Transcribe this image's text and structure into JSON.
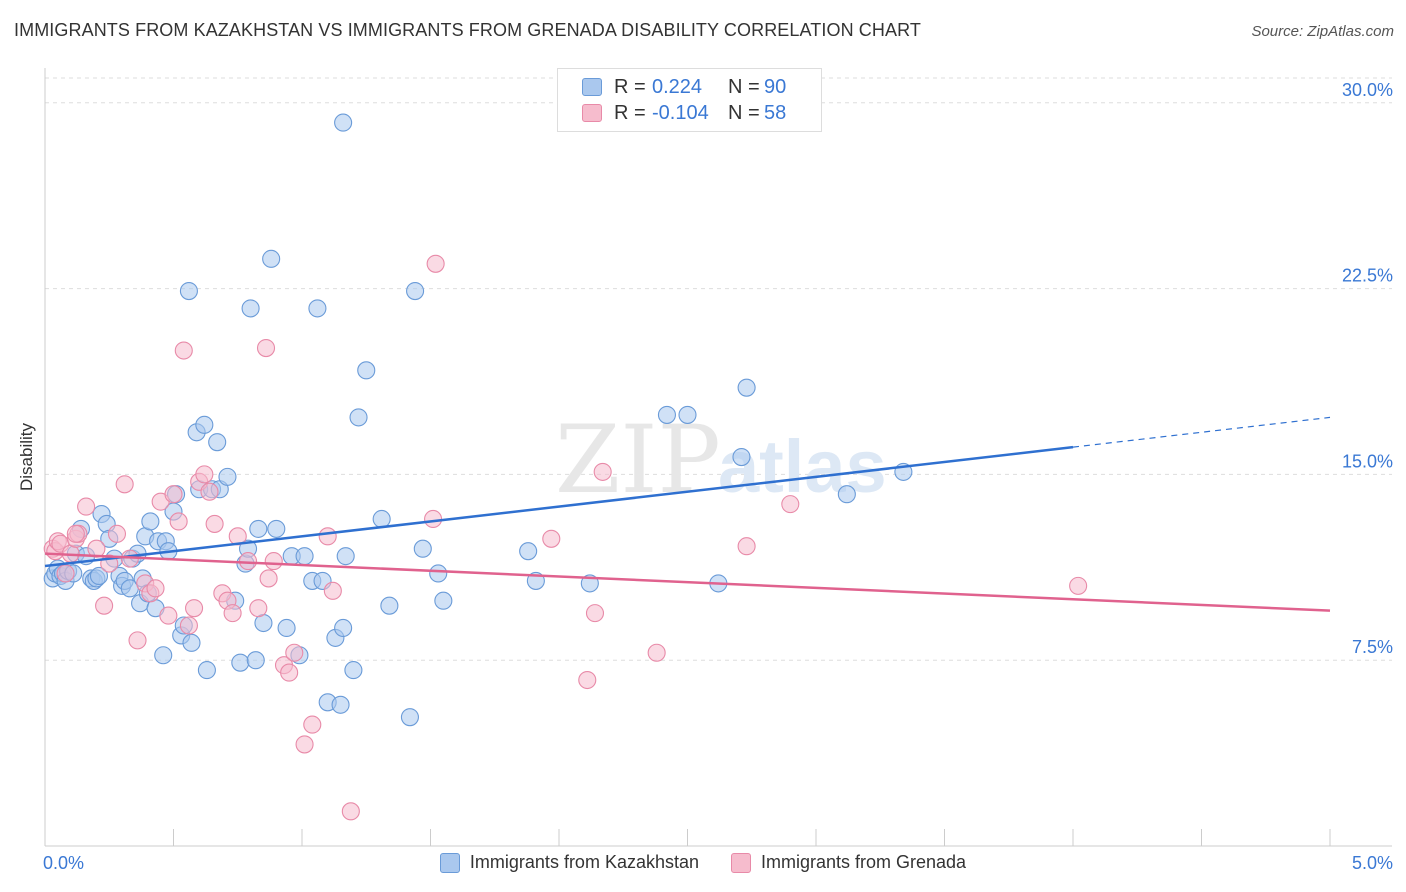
{
  "title": "IMMIGRANTS FROM KAZAKHSTAN VS IMMIGRANTS FROM GRENADA DISABILITY CORRELATION CHART",
  "source": "Source: ZipAtlas.com",
  "watermark": {
    "zip": "ZIP",
    "atlas": "atlas"
  },
  "legend": {
    "rows": [
      {
        "r_label": "R =",
        "r_value": "0.224",
        "n_label": "N =",
        "n_value": "90"
      },
      {
        "r_label": "R =",
        "r_value": "-0.104",
        "n_label": "N =",
        "n_value": "58"
      }
    ]
  },
  "bottom_legend": {
    "kazakhstan": "Immigrants from Kazakhstan",
    "grenada": "Immigrants from Grenada"
  },
  "colors": {
    "blue_fill": "#aac8ee",
    "blue_stroke": "#6a9bd8",
    "blue_line": "#2f70d0",
    "pink_fill": "#f6bccd",
    "pink_stroke": "#e88aa8",
    "pink_line": "#e0628e",
    "axis_text": "#3a78d4",
    "grid": "#dddddd"
  },
  "chart_data": {
    "type": "scatter",
    "title": "IMMIGRANTS FROM KAZAKHSTAN VS IMMIGRANTS FROM GRENADA DISABILITY CORRELATION CHART",
    "xlabel": "",
    "ylabel": "Disability",
    "xlim": [
      0,
      5
    ],
    "ylim": [
      0,
      31
    ],
    "x_tick_labels": [
      "0.0%",
      "5.0%"
    ],
    "y_ticks": [
      7.5,
      15.0,
      22.5,
      30.0
    ],
    "y_tick_labels": [
      "7.5%",
      "15.0%",
      "22.5%",
      "30.0%"
    ],
    "grid": "horizontal dashed",
    "legend_position": "top-center",
    "series": [
      {
        "name": "Immigrants from Kazakhstan",
        "color": "#aac8ee",
        "trend": {
          "x0": 0.0,
          "y0": 11.3,
          "x1": 4.0,
          "y1": 16.1,
          "dash_to_x": 5.0,
          "dash_to_y": 17.3
        },
        "points": [
          [
            0.03,
            10.8
          ],
          [
            0.04,
            11.0
          ],
          [
            0.05,
            11.2
          ],
          [
            0.06,
            10.9
          ],
          [
            0.07,
            11.0
          ],
          [
            0.08,
            10.7
          ],
          [
            0.09,
            11.1
          ],
          [
            0.11,
            11.0
          ],
          [
            0.12,
            11.8
          ],
          [
            0.14,
            12.8
          ],
          [
            0.16,
            11.7
          ],
          [
            0.18,
            10.8
          ],
          [
            0.19,
            10.7
          ],
          [
            0.2,
            10.8
          ],
          [
            0.21,
            10.9
          ],
          [
            0.22,
            13.4
          ],
          [
            0.24,
            13.0
          ],
          [
            0.25,
            12.4
          ],
          [
            0.27,
            11.6
          ],
          [
            0.29,
            10.9
          ],
          [
            0.3,
            10.5
          ],
          [
            0.31,
            10.7
          ],
          [
            0.33,
            10.4
          ],
          [
            0.34,
            11.6
          ],
          [
            0.36,
            11.8
          ],
          [
            0.37,
            9.8
          ],
          [
            0.38,
            10.8
          ],
          [
            0.39,
            12.5
          ],
          [
            0.4,
            10.2
          ],
          [
            0.41,
            13.1
          ],
          [
            0.43,
            9.6
          ],
          [
            0.44,
            12.3
          ],
          [
            0.46,
            7.7
          ],
          [
            0.47,
            12.3
          ],
          [
            0.48,
            11.9
          ],
          [
            0.5,
            13.5
          ],
          [
            0.51,
            14.2
          ],
          [
            0.53,
            8.5
          ],
          [
            0.54,
            8.9
          ],
          [
            0.56,
            22.4
          ],
          [
            0.57,
            8.2
          ],
          [
            0.59,
            16.7
          ],
          [
            0.6,
            14.4
          ],
          [
            0.62,
            17.0
          ],
          [
            0.63,
            7.1
          ],
          [
            0.65,
            14.4
          ],
          [
            0.67,
            16.3
          ],
          [
            0.68,
            14.4
          ],
          [
            0.71,
            14.9
          ],
          [
            0.74,
            9.9
          ],
          [
            0.76,
            7.4
          ],
          [
            0.78,
            11.4
          ],
          [
            0.79,
            12.0
          ],
          [
            0.8,
            21.7
          ],
          [
            0.82,
            7.5
          ],
          [
            0.83,
            12.8
          ],
          [
            0.85,
            9.0
          ],
          [
            0.88,
            23.7
          ],
          [
            0.9,
            12.8
          ],
          [
            0.94,
            8.8
          ],
          [
            0.96,
            11.7
          ],
          [
            0.99,
            7.7
          ],
          [
            1.01,
            11.7
          ],
          [
            1.04,
            10.7
          ],
          [
            1.06,
            21.7
          ],
          [
            1.08,
            10.7
          ],
          [
            1.1,
            5.8
          ],
          [
            1.13,
            8.4
          ],
          [
            1.15,
            5.7
          ],
          [
            1.16,
            8.8
          ],
          [
            1.17,
            11.7
          ],
          [
            1.2,
            7.1
          ],
          [
            1.22,
            17.3
          ],
          [
            1.25,
            19.2
          ],
          [
            1.31,
            13.2
          ],
          [
            1.34,
            9.7
          ],
          [
            1.42,
            5.2
          ],
          [
            1.44,
            22.4
          ],
          [
            1.47,
            12.0
          ],
          [
            1.53,
            11.0
          ],
          [
            1.55,
            9.9
          ],
          [
            1.88,
            11.9
          ],
          [
            1.91,
            10.7
          ],
          [
            2.12,
            10.6
          ],
          [
            2.42,
            17.4
          ],
          [
            2.5,
            17.4
          ],
          [
            2.62,
            10.6
          ],
          [
            2.71,
            15.7
          ],
          [
            2.73,
            18.5
          ],
          [
            3.12,
            14.2
          ],
          [
            3.34,
            15.1
          ],
          [
            1.16,
            29.2
          ]
        ]
      },
      {
        "name": "Immigrants from Grenada",
        "color": "#f6bccd",
        "trend": {
          "x0": 0.0,
          "y0": 11.8,
          "x1": 5.0,
          "y1": 9.5
        },
        "points": [
          [
            0.03,
            12.0
          ],
          [
            0.04,
            11.9
          ],
          [
            0.05,
            12.3
          ],
          [
            0.06,
            12.2
          ],
          [
            0.08,
            11.0
          ],
          [
            0.1,
            11.8
          ],
          [
            0.12,
            12.4
          ],
          [
            0.13,
            12.6
          ],
          [
            0.16,
            13.7
          ],
          [
            0.2,
            12.0
          ],
          [
            0.23,
            9.7
          ],
          [
            0.25,
            11.4
          ],
          [
            0.28,
            12.6
          ],
          [
            0.31,
            14.6
          ],
          [
            0.33,
            11.6
          ],
          [
            0.36,
            8.3
          ],
          [
            0.39,
            10.6
          ],
          [
            0.41,
            10.2
          ],
          [
            0.43,
            10.4
          ],
          [
            0.45,
            13.9
          ],
          [
            0.48,
            9.3
          ],
          [
            0.5,
            14.2
          ],
          [
            0.52,
            13.1
          ],
          [
            0.54,
            20.0
          ],
          [
            0.56,
            8.9
          ],
          [
            0.58,
            9.6
          ],
          [
            0.6,
            14.7
          ],
          [
            0.62,
            15.0
          ],
          [
            0.64,
            14.3
          ],
          [
            0.66,
            13.0
          ],
          [
            0.69,
            10.2
          ],
          [
            0.71,
            9.9
          ],
          [
            0.73,
            9.4
          ],
          [
            0.75,
            12.5
          ],
          [
            0.79,
            11.5
          ],
          [
            0.83,
            9.6
          ],
          [
            0.86,
            20.1
          ],
          [
            0.87,
            10.8
          ],
          [
            0.89,
            11.5
          ],
          [
            0.93,
            7.3
          ],
          [
            0.95,
            7.0
          ],
          [
            0.97,
            7.8
          ],
          [
            1.01,
            4.1
          ],
          [
            1.04,
            4.9
          ],
          [
            1.1,
            12.5
          ],
          [
            1.12,
            10.3
          ],
          [
            1.19,
            1.4
          ],
          [
            1.52,
            23.5
          ],
          [
            1.51,
            13.2
          ],
          [
            1.97,
            12.4
          ],
          [
            2.11,
            6.7
          ],
          [
            2.14,
            9.4
          ],
          [
            2.17,
            15.1
          ],
          [
            2.38,
            7.8
          ],
          [
            2.73,
            12.1
          ],
          [
            2.9,
            13.8
          ],
          [
            4.02,
            10.5
          ],
          [
            0.12,
            12.6
          ]
        ]
      }
    ]
  }
}
